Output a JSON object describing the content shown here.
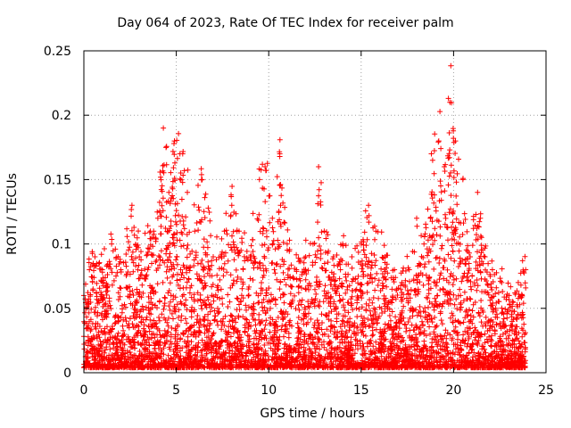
{
  "chart_data": {
    "type": "scatter",
    "title": "Day 064 of 2023, Rate Of TEC Index for receiver palm",
    "xlabel": "GPS time / hours",
    "ylabel": "ROTI / TECUs",
    "xlim": [
      0,
      25
    ],
    "ylim": [
      0,
      0.25
    ],
    "x_ticks": [
      0,
      5,
      10,
      15,
      20,
      25
    ],
    "y_ticks": [
      0,
      0.05,
      0.1,
      0.15,
      0.2,
      0.25
    ],
    "x_tick_labels": [
      "0",
      "5",
      "10",
      "15",
      "20",
      "25"
    ],
    "y_tick_labels": [
      "0",
      "0.05",
      "0.1",
      "0.15",
      "0.2",
      "0.25"
    ],
    "grid": true,
    "marker": "+",
    "color": "#ff0000",
    "envelope": {
      "x": [
        0.0,
        0.3,
        0.6,
        1.0,
        1.5,
        2.0,
        2.6,
        3.0,
        3.6,
        4.0,
        4.3,
        4.6,
        4.9,
        5.2,
        5.6,
        6.0,
        6.4,
        7.0,
        7.6,
        8.0,
        8.4,
        9.0,
        9.5,
        9.8,
        10.2,
        10.6,
        11.0,
        11.5,
        12.0,
        12.4,
        12.7,
        13.0,
        13.5,
        14.0,
        14.5,
        15.0,
        15.4,
        15.8,
        16.3,
        16.8,
        17.2,
        17.6,
        18.0,
        18.4,
        18.8,
        19.2,
        19.5,
        19.8,
        20.1,
        20.5,
        20.9,
        21.3,
        21.7,
        22.1,
        22.6,
        23.0,
        23.5,
        23.9
      ],
      "y": [
        0.06,
        0.08,
        0.09,
        0.08,
        0.1,
        0.08,
        0.13,
        0.09,
        0.11,
        0.12,
        0.19,
        0.14,
        0.18,
        0.17,
        0.14,
        0.11,
        0.15,
        0.09,
        0.11,
        0.13,
        0.11,
        0.09,
        0.15,
        0.16,
        0.12,
        0.17,
        0.1,
        0.08,
        0.09,
        0.1,
        0.16,
        0.11,
        0.09,
        0.1,
        0.09,
        0.1,
        0.13,
        0.11,
        0.09,
        0.08,
        0.07,
        0.08,
        0.12,
        0.1,
        0.17,
        0.18,
        0.16,
        0.21,
        0.18,
        0.15,
        0.09,
        0.14,
        0.09,
        0.08,
        0.07,
        0.06,
        0.07,
        0.08
      ]
    }
  }
}
